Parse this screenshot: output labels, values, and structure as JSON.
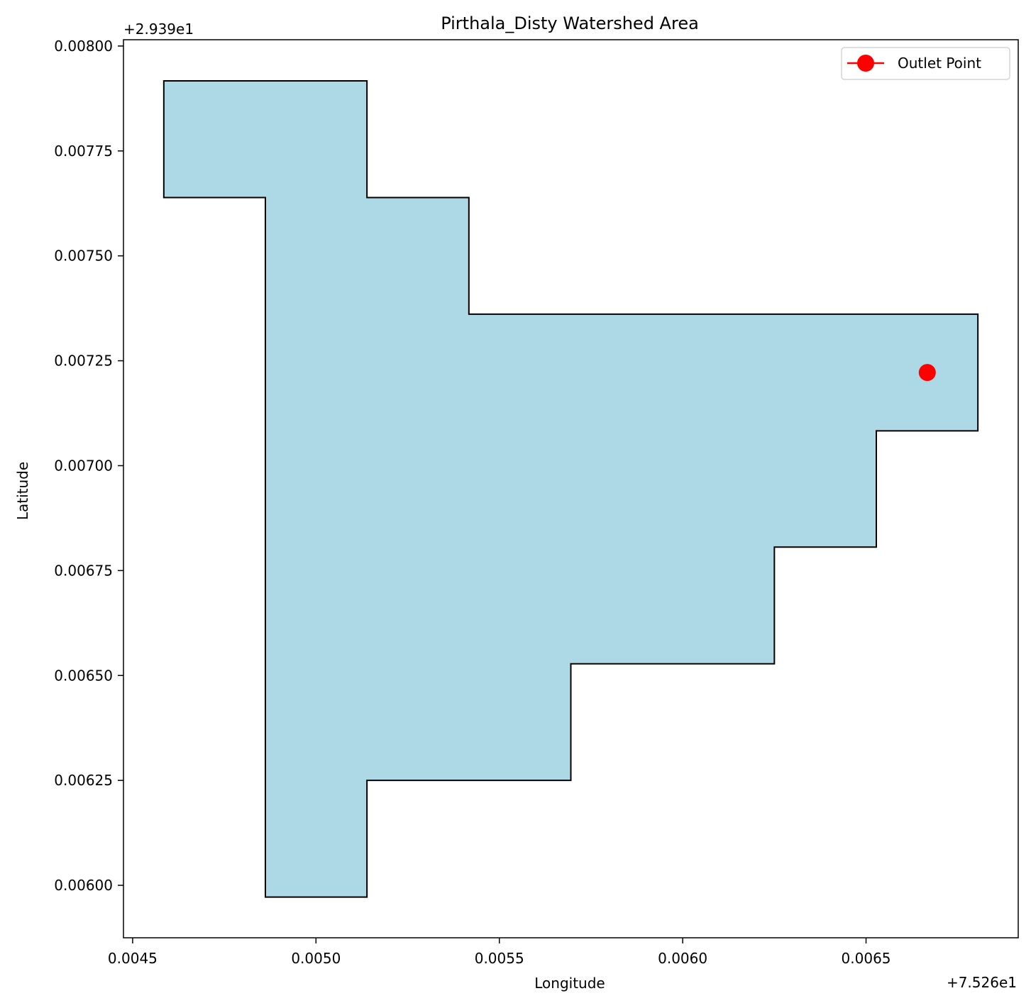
{
  "chart_data": {
    "type": "area",
    "title": "Pirthala_Disty Watershed Area",
    "xlabel": "Longitude",
    "ylabel": "Latitude",
    "x_offset_label": "+7.526e1",
    "y_offset_label": "+2.939e1",
    "x_offset": 75.26,
    "y_offset": 29.39,
    "xlim": [
      0.004475,
      0.006915
    ],
    "ylim": [
      0.005875,
      0.008015
    ],
    "x_ticks": [
      0.0045,
      0.005,
      0.0055,
      0.006,
      0.0065
    ],
    "x_tick_labels": [
      "0.0045",
      "0.0050",
      "0.0055",
      "0.0060",
      "0.0065"
    ],
    "y_ticks": [
      0.006,
      0.00625,
      0.0065,
      0.00675,
      0.007,
      0.00725,
      0.0075,
      0.00775,
      0.008
    ],
    "y_tick_labels": [
      "0.00600",
      "0.00625",
      "0.00650",
      "0.00675",
      "0.00700",
      "0.00725",
      "0.00750",
      "0.00775",
      "0.00800"
    ],
    "grid": false,
    "legend_position": "top-right",
    "series": [
      {
        "kind": "polygon",
        "fill": "#add8e6",
        "stroke": "#000000",
        "points": [
          [
            0.004585,
            0.007917
          ],
          [
            0.005139,
            0.007917
          ],
          [
            0.005139,
            0.007639
          ],
          [
            0.005417,
            0.007639
          ],
          [
            0.005417,
            0.007361
          ],
          [
            0.006805,
            0.007361
          ],
          [
            0.006805,
            0.007083
          ],
          [
            0.006528,
            0.007083
          ],
          [
            0.006528,
            0.006806
          ],
          [
            0.00625,
            0.006806
          ],
          [
            0.00625,
            0.006528
          ],
          [
            0.005695,
            0.006528
          ],
          [
            0.005695,
            0.00625
          ],
          [
            0.005139,
            0.00625
          ],
          [
            0.005139,
            0.005972
          ],
          [
            0.004862,
            0.005972
          ],
          [
            0.004862,
            0.007639
          ],
          [
            0.004585,
            0.007639
          ]
        ]
      },
      {
        "name": "Outlet Point",
        "kind": "point",
        "color": "#ff0000",
        "x": 0.006667,
        "y": 0.007222
      }
    ]
  }
}
